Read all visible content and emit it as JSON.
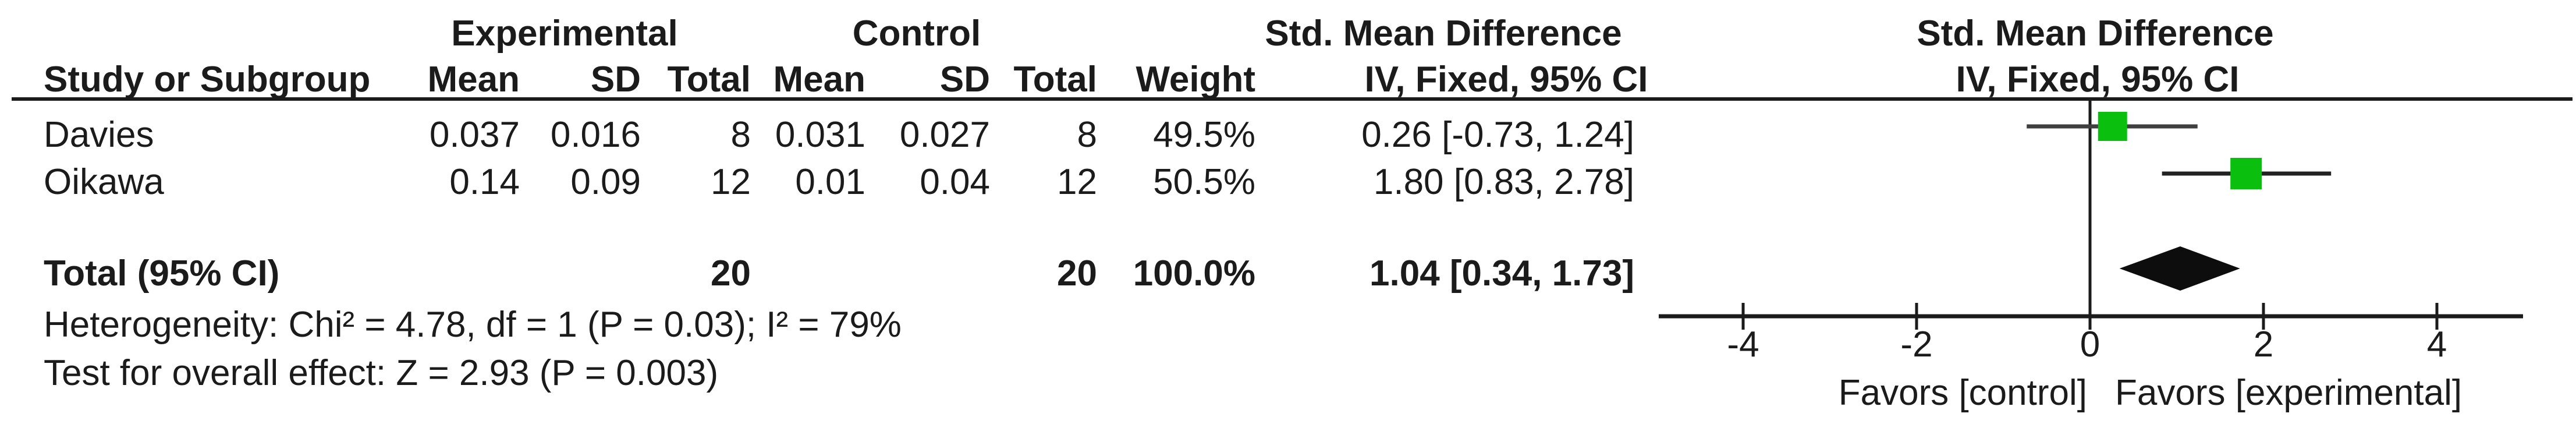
{
  "header": {
    "experimental": "Experimental",
    "control": "Control",
    "smd_col": "Std. Mean Difference",
    "smd_plot": "Std. Mean Difference",
    "study": "Study or Subgroup",
    "mean_exp": "Mean",
    "sd_exp": "SD",
    "total_exp": "Total",
    "mean_ctrl": "Mean",
    "sd_ctrl": "SD",
    "total_ctrl": "Total",
    "weight": "Weight",
    "iv_col": "IV, Fixed, 95% CI",
    "iv_plot": "IV, Fixed, 95% CI"
  },
  "rows": [
    {
      "study": "Davies",
      "mean_e": "0.037",
      "sd_e": "0.016",
      "n_e": "8",
      "mean_c": "0.031",
      "sd_c": "0.027",
      "n_c": "8",
      "weight": "49.5%",
      "ci": "0.26 [-0.73, 1.24]"
    },
    {
      "study": "Oikawa",
      "mean_e": "0.14",
      "sd_e": "0.09",
      "n_e": "12",
      "mean_c": "0.01",
      "sd_c": "0.04",
      "n_c": "12",
      "weight": "50.5%",
      "ci": "1.80 [0.83, 2.78]"
    }
  ],
  "total_row": {
    "label": "Total (95% CI)",
    "n_e": "20",
    "n_c": "20",
    "weight": "100.0%",
    "ci": "1.04 [0.34, 1.73]"
  },
  "footnotes": {
    "heterogeneity": "Heterogeneity: Chi² = 4.78, df = 1 (P = 0.03); I² = 79%",
    "overall": "Test for overall effect: Z = 2.93 (P = 0.003)"
  },
  "axis": {
    "tick_labels": [
      "-4",
      "-2",
      "0",
      "2",
      "4"
    ],
    "favors_left": "Favors [control]",
    "favors_right": "Favors [experimental]"
  },
  "colors": {
    "marker_green": "#0bbf0e",
    "ink": "#1b1b1b"
  },
  "chart_data": {
    "type": "forest",
    "effect_measure": "Std. Mean Difference",
    "method": "IV, Fixed, 95% CI",
    "studies": [
      {
        "name": "Davies",
        "mean_exp": 0.037,
        "sd_exp": 0.016,
        "n_exp": 8,
        "mean_ctrl": 0.031,
        "sd_ctrl": 0.027,
        "n_ctrl": 8,
        "weight_pct": 49.5,
        "smd": 0.26,
        "ci_low": -0.73,
        "ci_high": 1.24
      },
      {
        "name": "Oikawa",
        "mean_exp": 0.14,
        "sd_exp": 0.09,
        "n_exp": 12,
        "mean_ctrl": 0.01,
        "sd_ctrl": 0.04,
        "n_ctrl": 12,
        "weight_pct": 50.5,
        "smd": 1.8,
        "ci_low": 0.83,
        "ci_high": 2.78
      }
    ],
    "total": {
      "label": "Total (95% CI)",
      "n_exp": 20,
      "n_ctrl": 20,
      "weight_pct": 100.0,
      "smd": 1.04,
      "ci_low": 0.34,
      "ci_high": 1.73
    },
    "heterogeneity": {
      "chi2": 4.78,
      "df": 1,
      "p": 0.03,
      "i2_pct": 79
    },
    "overall_effect": {
      "z": 2.93,
      "p": 0.003
    },
    "axis": {
      "min": -5,
      "max": 5,
      "ticks": [
        -4,
        -2,
        0,
        2,
        4
      ],
      "favors_left": "Favors [control]",
      "favors_right": "Favors [experimental]"
    },
    "legend_position": "none",
    "grid": false
  }
}
